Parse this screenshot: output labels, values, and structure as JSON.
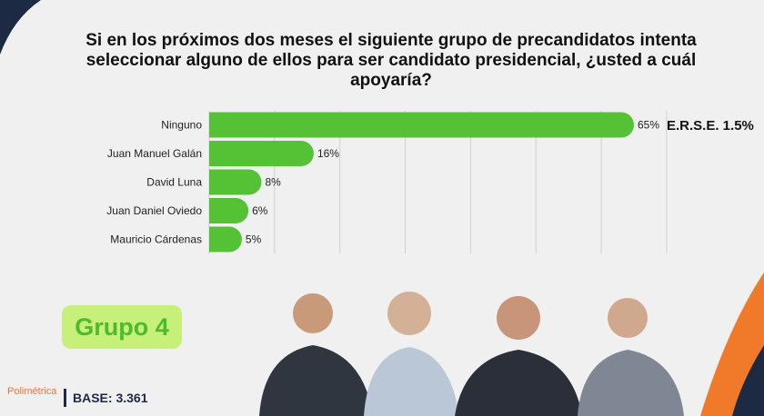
{
  "title": "Si en los próximos dos meses el siguiente grupo de precandidatos intenta seleccionar alguno de ellos para ser candidato presidencial, ¿usted a cuál apoyaría?",
  "erse": "E.R.S.E. 1.5%",
  "group_label": "Grupo 4",
  "base": "BASE: 3.361",
  "logo_text": "Polimétrica",
  "colors": {
    "bar": "#55c236",
    "navy": "#1d2a44",
    "orange": "#f07a2a"
  },
  "chart_data": {
    "type": "bar",
    "orientation": "horizontal",
    "categories": [
      "Ninguno",
      "Juan Manuel Galán",
      "David Luna",
      "Juan Daniel Oviedo",
      "Mauricio Cárdenas"
    ],
    "values": [
      65,
      16,
      8,
      6,
      5
    ],
    "labels": [
      "65%",
      "16%",
      "8%",
      "6%",
      "5%"
    ],
    "xlim": [
      0,
      70
    ],
    "grid": true
  }
}
